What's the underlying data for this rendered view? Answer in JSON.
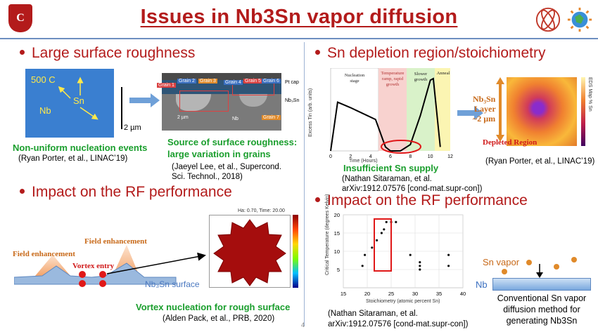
{
  "header": {
    "title": "Issues in Nb3Sn vapor diffusion",
    "seal_text": "C"
  },
  "left": {
    "heading1": "Large surface roughness",
    "sem_labels": {
      "temp": "500 C",
      "sn": "Sn",
      "nb": "Nb"
    },
    "scale_left": "2 µm",
    "cross_labels": {
      "grain1": "Grain 1",
      "grain2": "Grain 2",
      "grain3": "Grain 3",
      "grain4": "Grain 4",
      "grain5": "Grain 5",
      "grain6": "Grain 6",
      "grain7": "Grain 7",
      "pt_cap": "Pt cap",
      "nb3sn": "Nb₃Sn",
      "nb": "Nb",
      "scale": "2 µm"
    },
    "nucleation_caption": "Non-uniform nucleation events",
    "nucleation_cite": "(Ryan Porter, et al., LINAC’19)",
    "roughness_caption_1": "Source of surface roughness:",
    "roughness_caption_2": "large variation in grains",
    "roughness_cite_1": "(Jaeyel Lee, et al., Supercond.",
    "roughness_cite_2": "Sci. Technol., 2018)",
    "heading2": "Impact on the RF performance",
    "field_enh_1": "Field enhancement",
    "field_enh_2": "Field enhancement",
    "vortex_entry": "Vortex entry",
    "nb3sn_surface": "Nb₃Sn surface",
    "sim_title": "Ha: 0.70, Time:      20.00",
    "vortex_caption": "Vortex nucleation for rough surface",
    "vortex_cite": "(Alden Pack, et al., PRB, 2020)"
  },
  "right": {
    "heading1": "Sn depletion region/stoichiometry",
    "insufficient": "Insufficient Sn supply",
    "cite1_1": "(Nathan Sitaraman, et al.",
    "cite1_2": "arXiv:1912.07576 [cond-mat.supr-con])",
    "eds_labels": {
      "layer_1": "Nb₃Sn",
      "layer_2": "Layer",
      "layer_3": "~2 µm",
      "depleted": "Depleted Region",
      "axis": "EDS Map % Sn"
    },
    "eds_cite": "(Ryan Porter, et al., LINAC’19)",
    "heading2": "Impact on the RF performance",
    "cite2_1": "(Nathan Sitaraman, et al.",
    "cite2_2": "arXiv:1912.07576 [cond-mat.supr-con])",
    "sn_vapor": "Sn vapor",
    "nb": "Nb",
    "conventional_1": "Conventional Sn vapor",
    "conventional_2": "diffusion method for",
    "conventional_3": "generating Nb3Sn"
  },
  "page_number": "4",
  "colors": {
    "accent": "#b31b1b",
    "green": "#1a9e2d",
    "rule": "#6d8fc0"
  },
  "chart_data": [
    {
      "type": "line",
      "xlabel": "Time (Hours)",
      "ylabel": "Excess Tin (arb. units)",
      "x_ticks": [
        "0",
        "2",
        "4",
        "6",
        "8",
        "10",
        "12"
      ],
      "xlim": [
        0,
        12
      ],
      "stages": [
        "Nucleation stage",
        "Temperature ramp, rapid growth",
        "Slower growth",
        "Anneal"
      ],
      "x": [
        0,
        0.7,
        2,
        4.5,
        5.5,
        6,
        7,
        8,
        9,
        10,
        10.3,
        11
      ],
      "values": [
        0,
        0.62,
        0.55,
        0.4,
        0.05,
        0.0,
        0.0,
        0.08,
        0.45,
        0.9,
        0.92,
        0.05
      ]
    },
    {
      "type": "scatter",
      "xlabel": "Stoichiometry (atomic percent Sn)",
      "ylabel": "Critical Temperature (degrees Kelvin)",
      "x_ticks": [
        "15",
        "20",
        "25",
        "30",
        "35",
        "40"
      ],
      "y_ticks": [
        "5",
        "10",
        "15",
        "20"
      ],
      "xlim": [
        15,
        40
      ],
      "ylim": [
        0,
        20
      ],
      "x": [
        19,
        19.5,
        21,
        22,
        23,
        23.5,
        24,
        25,
        26,
        29,
        31,
        31,
        31,
        37,
        37
      ],
      "values": [
        6,
        9,
        11,
        13,
        15,
        16,
        18,
        18,
        18,
        9,
        7,
        6,
        5,
        9,
        6
      ]
    }
  ]
}
